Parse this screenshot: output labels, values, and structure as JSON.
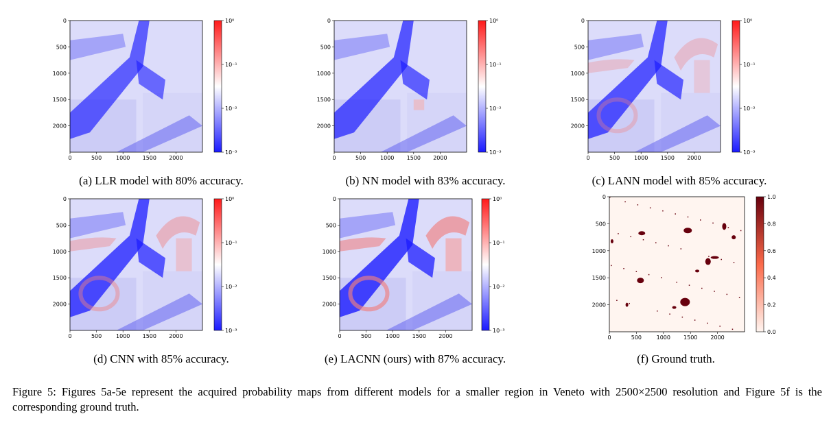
{
  "panels": [
    {
      "id": "a",
      "caption": "(a) LLR model with 80% accuracy.",
      "colorbar": "log",
      "xticks": [
        "0",
        "500",
        "1000",
        "1500",
        "2000"
      ],
      "yticks": [
        "0",
        "500",
        "1000",
        "1500",
        "2000"
      ],
      "cbticks": [
        "10⁰",
        "10⁻¹",
        "10⁻²",
        "10⁻³"
      ]
    },
    {
      "id": "b",
      "caption": "(b) NN model with 83% accuracy.",
      "colorbar": "log",
      "xticks": [
        "0",
        "500",
        "1000",
        "1500",
        "2000"
      ],
      "yticks": [
        "0",
        "500",
        "1000",
        "1500",
        "2000"
      ],
      "cbticks": [
        "10⁰",
        "10⁻¹",
        "10⁻²",
        "10⁻³"
      ]
    },
    {
      "id": "c",
      "caption": "(c) LANN model with 85% accuracy.",
      "colorbar": "log",
      "xticks": [
        "0",
        "500",
        "1000",
        "1500",
        "2000"
      ],
      "yticks": [
        "0",
        "500",
        "1000",
        "1500",
        "2000"
      ],
      "cbticks": [
        "10⁰",
        "10⁻¹",
        "10⁻²",
        "10⁻³"
      ]
    },
    {
      "id": "d",
      "caption": "(d) CNN with 85% accuracy.",
      "colorbar": "log",
      "xticks": [
        "0",
        "500",
        "1000",
        "1500",
        "2000"
      ],
      "yticks": [
        "0",
        "500",
        "1000",
        "1500",
        "2000"
      ],
      "cbticks": [
        "10⁰",
        "10⁻¹",
        "10⁻²",
        "10⁻³"
      ]
    },
    {
      "id": "e",
      "caption": "(e) LACNN (ours) with 87% accuracy.",
      "colorbar": "log",
      "xticks": [
        "0",
        "500",
        "1000",
        "1500",
        "2000"
      ],
      "yticks": [
        "0",
        "500",
        "1000",
        "1500",
        "2000"
      ],
      "cbticks": [
        "10⁰",
        "10⁻¹",
        "10⁻²",
        "10⁻³"
      ]
    },
    {
      "id": "f",
      "caption": "(f) Ground truth.",
      "colorbar": "linear",
      "xticks": [
        "0",
        "500",
        "1000",
        "1500",
        "2000"
      ],
      "yticks": [
        "0",
        "500",
        "1000",
        "1500",
        "2000"
      ],
      "cbticks": [
        "1.0",
        "0.8",
        "0.6",
        "0.4",
        "0.2",
        "0.0"
      ]
    }
  ],
  "figure_caption": "Figure 5: Figures 5a-5e represent the acquired probability maps from different models for a smaller region in Veneto with 2500×2500 resolution and Figure 5f is the corresponding ground truth.",
  "colors": {
    "blue": "#1a1aff",
    "white": "#ffffff",
    "red": "#ff1a1a",
    "dark_red": "#67000d",
    "light": "#fff5f0"
  }
}
